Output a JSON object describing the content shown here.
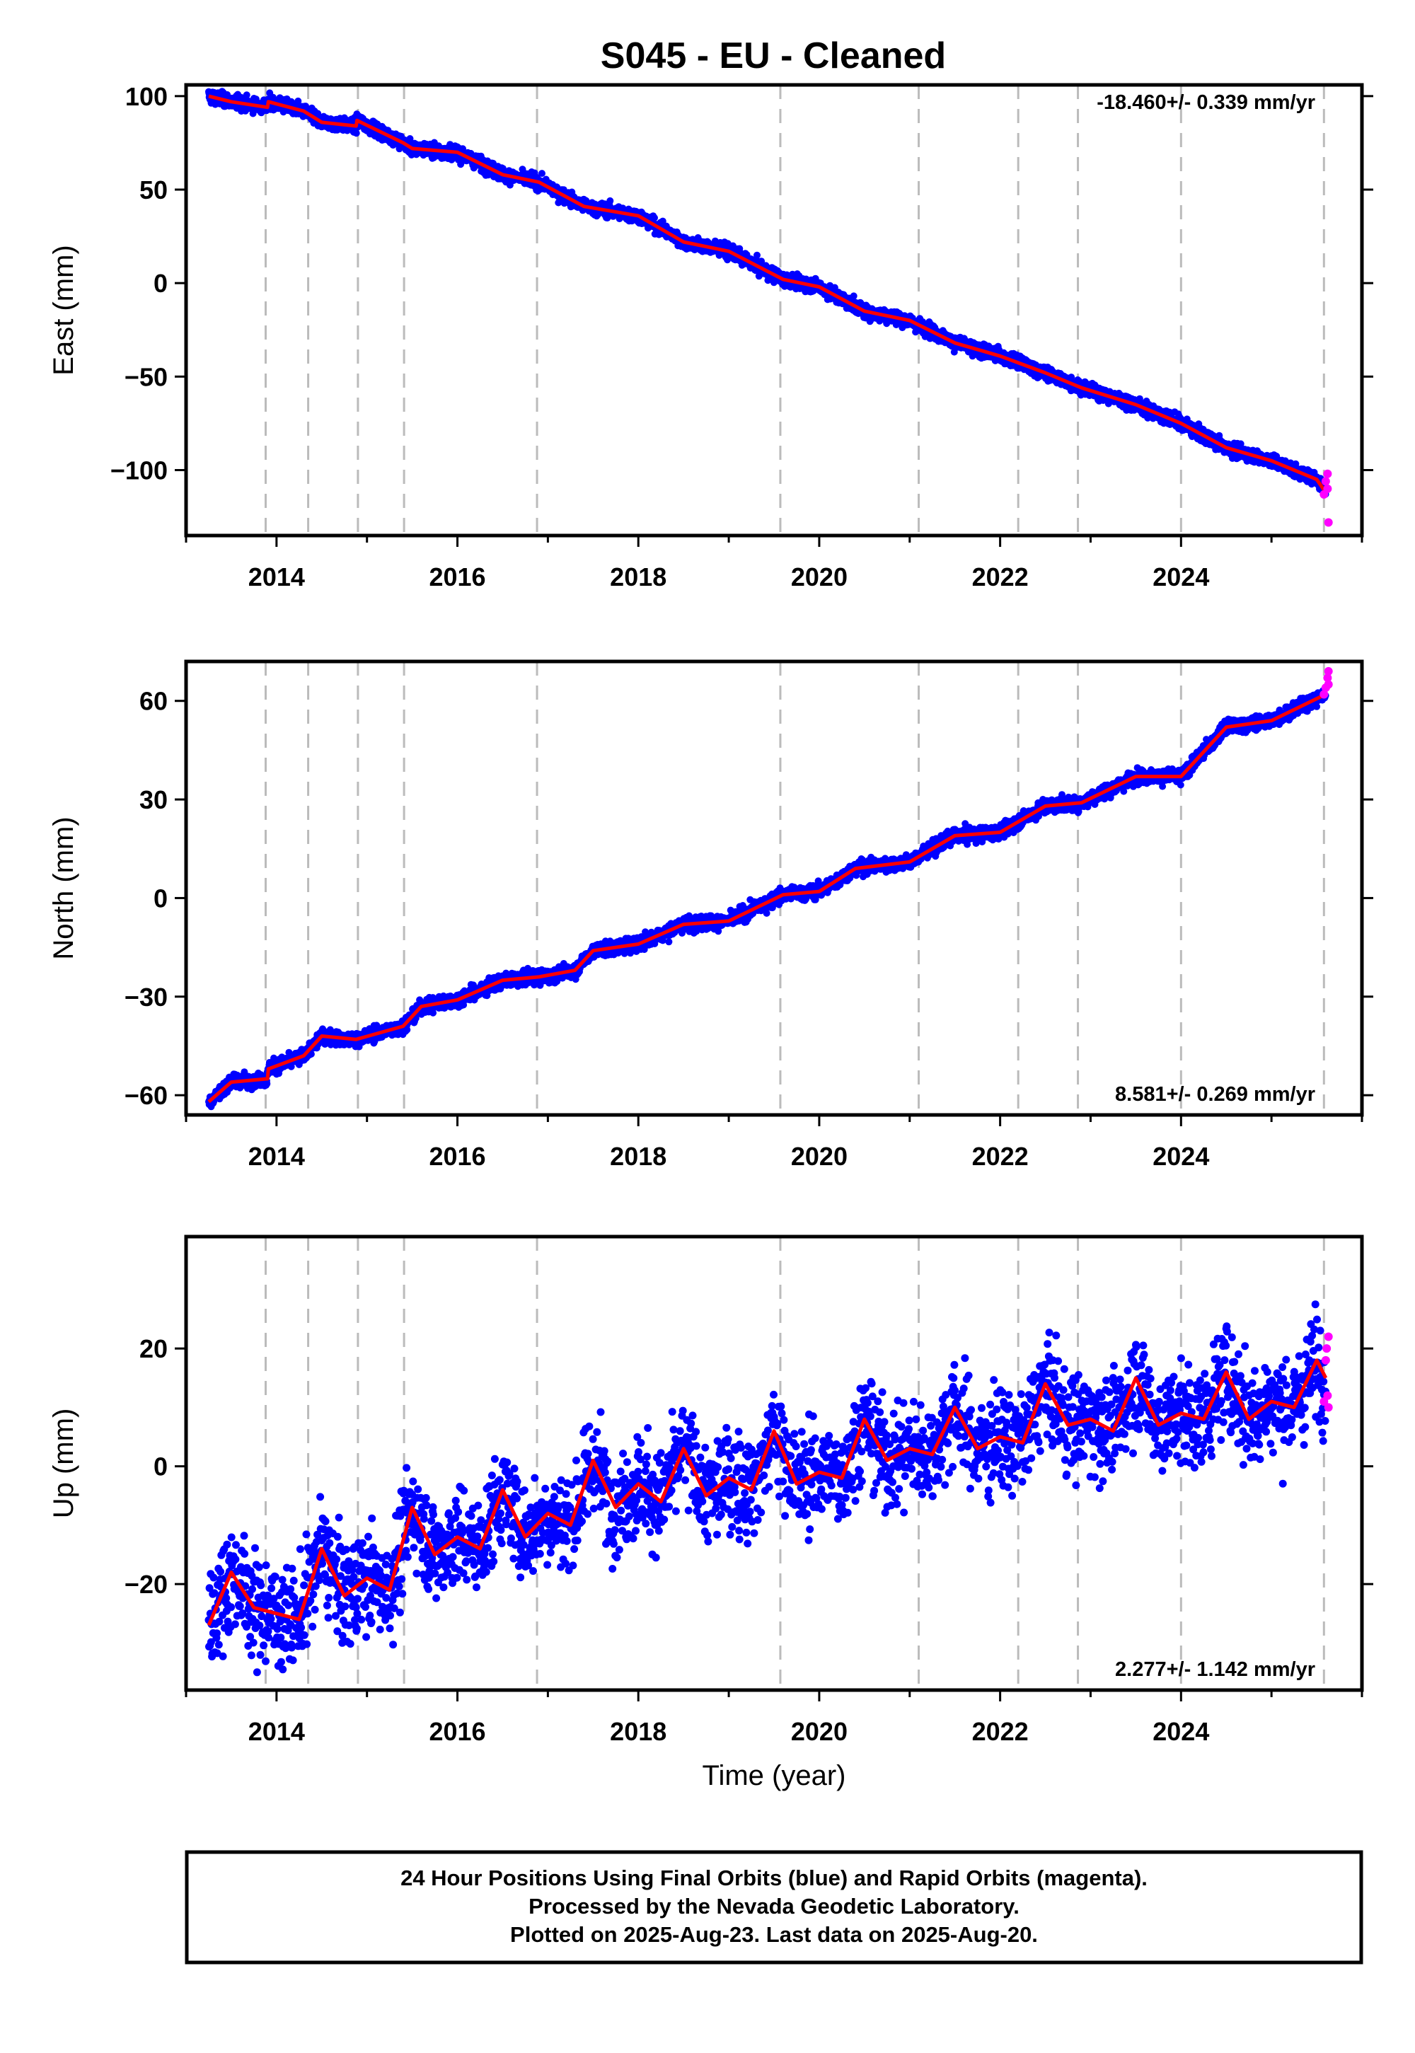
{
  "title": "S045  - EU - Cleaned",
  "colors": {
    "final_orbits": "#0000ff",
    "rapid_orbits": "#ff00ff",
    "model": "#ff0000",
    "event_lines": "#bbbbbb"
  },
  "chart_data": [
    {
      "type": "scatter",
      "component": "east",
      "ylabel": "East (mm)",
      "xlim": [
        2013.0,
        2026.0
      ],
      "ylim": [
        -135,
        106
      ],
      "yticks": [
        100,
        50,
        0,
        -50,
        -100
      ],
      "yticklabels": [
        "100",
        "50",
        "0",
        "−50",
        "−100"
      ],
      "xticks": [
        2014,
        2016,
        2018,
        2020,
        2022,
        2024
      ],
      "xticklabels": [
        "2014",
        "2016",
        "2018",
        "2020",
        "2022",
        "2024"
      ],
      "rate_text": "-18.460+/- 0.339 mm/yr",
      "rate_position": "top-right",
      "series": [
        {
          "name": "Final Orbits (blue)",
          "model_x": [
            2013.25,
            2013.5,
            2013.9,
            2013.91,
            2014.3,
            2014.5,
            2014.88,
            2014.89,
            2015.4,
            2015.5,
            2016.0,
            2016.5,
            2016.9,
            2017.4,
            2018.0,
            2018.5,
            2019.0,
            2019.6,
            2020.0,
            2020.5,
            2021.0,
            2021.5,
            2022.0,
            2022.5,
            2022.9,
            2023.5,
            2024.0,
            2024.5,
            2025.0,
            2025.5,
            2025.6
          ],
          "model_y": [
            100,
            97,
            94,
            97,
            92,
            86,
            84,
            87,
            75,
            72,
            70,
            58,
            54,
            41,
            36,
            22,
            17,
            2,
            -2,
            -15,
            -20,
            -32,
            -39,
            -48,
            -56,
            -65,
            -75,
            -88,
            -95,
            -105,
            -112
          ],
          "scatter_spread": 2.5
        },
        {
          "name": "Rapid Orbits (magenta)",
          "x": [
            2025.58,
            2025.6,
            2025.62,
            2025.62,
            2025.63
          ],
          "y": [
            -113,
            -106,
            -102,
            -110,
            -128
          ]
        }
      ]
    },
    {
      "type": "scatter",
      "component": "north",
      "ylabel": "North (mm)",
      "xlim": [
        2013.0,
        2026.0
      ],
      "ylim": [
        -66,
        72
      ],
      "yticks": [
        60,
        30,
        0,
        -30,
        -60
      ],
      "yticklabels": [
        "60",
        "30",
        "0",
        "−30",
        "−60"
      ],
      "xticks": [
        2014,
        2016,
        2018,
        2020,
        2022,
        2024
      ],
      "xticklabels": [
        "2014",
        "2016",
        "2018",
        "2020",
        "2022",
        "2024"
      ],
      "rate_text": "8.581+/- 0.269 mm/yr",
      "rate_position": "bottom-right",
      "series": [
        {
          "name": "Final Orbits (blue)",
          "model_x": [
            2013.25,
            2013.5,
            2013.9,
            2013.91,
            2014.3,
            2014.5,
            2014.88,
            2015.4,
            2015.6,
            2016.0,
            2016.5,
            2016.9,
            2017.3,
            2017.5,
            2018.0,
            2018.5,
            2019.0,
            2019.6,
            2020.0,
            2020.4,
            2021.0,
            2021.5,
            2022.0,
            2022.5,
            2022.9,
            2023.5,
            2024.0,
            2024.5,
            2025.0,
            2025.6
          ],
          "model_y": [
            -62,
            -56,
            -55,
            -52,
            -48,
            -42,
            -43,
            -39,
            -33,
            -31,
            -25,
            -24,
            -22,
            -16,
            -14,
            -8,
            -7,
            1,
            2,
            9,
            11,
            19,
            20,
            28,
            29,
            37,
            37,
            52,
            54,
            62
          ],
          "scatter_spread": 1.5
        },
        {
          "name": "Rapid Orbits (magenta)",
          "x": [
            2025.58,
            2025.6,
            2025.62,
            2025.63,
            2025.63
          ],
          "y": [
            62,
            64,
            67,
            65,
            69
          ]
        }
      ]
    },
    {
      "type": "scatter",
      "component": "up",
      "ylabel": "Up (mm)",
      "xlabel": "Time (year)",
      "xlim": [
        2013.0,
        2026.0
      ],
      "ylim": [
        -38,
        39
      ],
      "yticks": [
        20,
        0,
        -20
      ],
      "yticklabels": [
        "20",
        "0",
        "−20"
      ],
      "xticks": [
        2014,
        2016,
        2018,
        2020,
        2022,
        2024
      ],
      "xticklabels": [
        "2014",
        "2016",
        "2018",
        "2020",
        "2022",
        "2024"
      ],
      "rate_text": "2.277+/- 1.142 mm/yr",
      "rate_position": "bottom-right",
      "series": [
        {
          "name": "Final Orbits (blue)",
          "model_x": [
            2013.25,
            2013.5,
            2013.75,
            2014.0,
            2014.25,
            2014.5,
            2014.75,
            2015.0,
            2015.25,
            2015.5,
            2015.75,
            2016.0,
            2016.25,
            2016.5,
            2016.75,
            2017.0,
            2017.25,
            2017.5,
            2017.75,
            2018.0,
            2018.25,
            2018.5,
            2018.75,
            2019.0,
            2019.25,
            2019.5,
            2019.75,
            2020.0,
            2020.25,
            2020.5,
            2020.75,
            2021.0,
            2021.25,
            2021.5,
            2021.75,
            2022.0,
            2022.25,
            2022.5,
            2022.75,
            2023.0,
            2023.25,
            2023.5,
            2023.75,
            2024.0,
            2024.25,
            2024.5,
            2024.75,
            2025.0,
            2025.25,
            2025.5,
            2025.6
          ],
          "model_y": [
            -27,
            -18,
            -24,
            -25,
            -26,
            -14,
            -22,
            -19,
            -21,
            -7,
            -15,
            -12,
            -14,
            -4,
            -12,
            -8,
            -10,
            1,
            -7,
            -3,
            -6,
            3,
            -5,
            -2,
            -4,
            6,
            -3,
            -1,
            -2,
            8,
            1,
            3,
            2,
            10,
            3,
            5,
            4,
            14,
            7,
            8,
            6,
            15,
            7,
            9,
            8,
            16,
            8,
            11,
            10,
            18,
            15
          ],
          "scatter_spread": 6
        },
        {
          "name": "Rapid Orbits (magenta)",
          "x": [
            2025.58,
            2025.6,
            2025.61,
            2025.62,
            2025.63,
            2025.63
          ],
          "y": [
            11,
            18,
            20,
            12,
            22,
            10
          ]
        }
      ]
    }
  ],
  "event_lines_years": [
    2013.88,
    2014.35,
    2014.9,
    2015.41,
    2016.88,
    2019.57,
    2021.1,
    2022.2,
    2022.86,
    2024.0,
    2025.58
  ],
  "footer": {
    "line1": "24 Hour Positions Using Final Orbits (blue) and Rapid Orbits (magenta).",
    "line2": "Processed by the Nevada Geodetic Laboratory.",
    "line3": "Plotted on 2025-Aug-23. Last data on 2025-Aug-20."
  }
}
